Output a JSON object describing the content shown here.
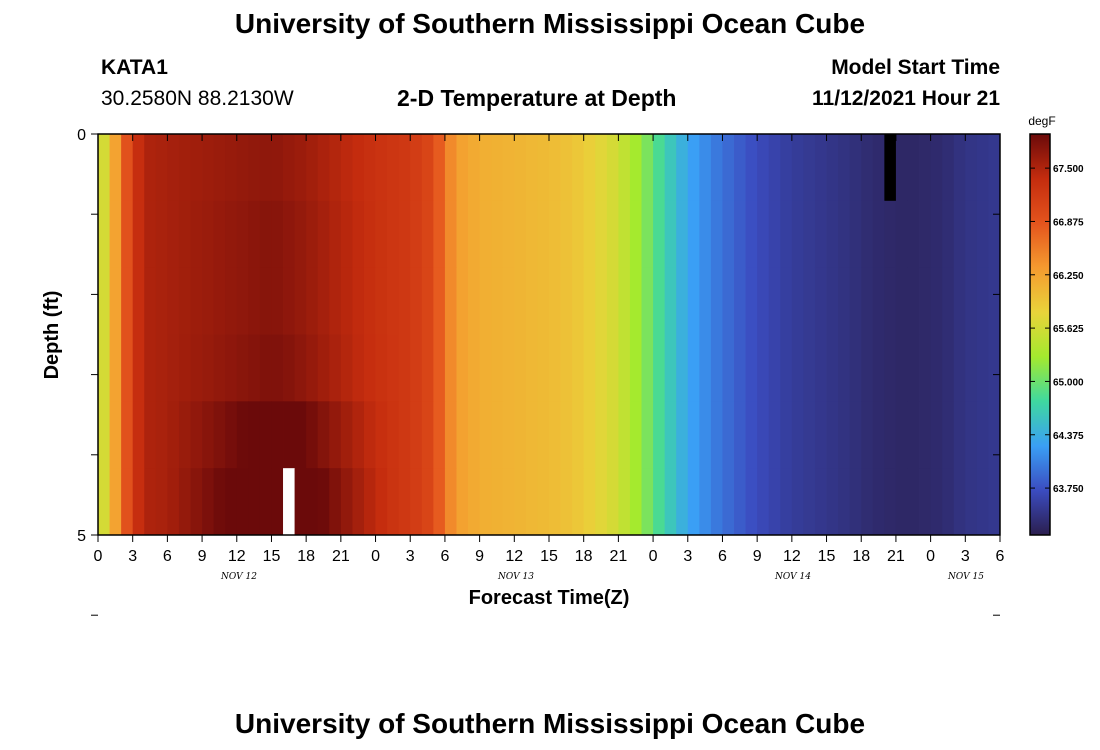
{
  "header": {
    "title": "University of Southern Mississippi Ocean Cube",
    "station_id": "KATA1",
    "station_coords": "30.2580N  88.2130W",
    "plot_title": "2-D Temperature at Depth",
    "model_start_label": "Model Start Time",
    "model_start_value": "11/12/2021 Hour 21"
  },
  "footer": {
    "title": "University of Southern Mississippi Ocean Cube"
  },
  "colors": {
    "colormap": [
      "#2b1e4e",
      "#3b4cc0",
      "#3a9ff5",
      "#3fd8a0",
      "#a4ea2e",
      "#e9d33a",
      "#f59a2f",
      "#e4541d",
      "#c42c0e",
      "#6b0a0a"
    ]
  },
  "chart_data": {
    "type": "heatmap",
    "title": "2-D Temperature at Depth",
    "xlabel": "Forecast Time(Z)",
    "ylabel": "Depth (ft)",
    "x_tick_labels": [
      "0",
      "3",
      "6",
      "9",
      "12",
      "15",
      "18",
      "21",
      "0",
      "3",
      "6",
      "9",
      "12",
      "15",
      "18",
      "21",
      "0",
      "3",
      "6",
      "9",
      "12",
      "15",
      "18",
      "21",
      "0",
      "3",
      "6"
    ],
    "x_date_labels": [
      "NOV 12",
      "NOV 13",
      "NOV 14",
      "NOV 15"
    ],
    "y_tick_labels": [
      "0",
      "5"
    ],
    "ylim": [
      0,
      5
    ],
    "xlim_hours": [
      0,
      78
    ],
    "depth_rows": [
      0,
      1,
      2,
      3,
      4,
      5
    ],
    "colorbar": {
      "unit": "degF",
      "ticks": [
        "67.500",
        "66.875",
        "66.250",
        "65.625",
        "65.000",
        "64.375",
        "63.750"
      ],
      "range": [
        63.2,
        67.9
      ]
    },
    "time_profile_degF": [
      [
        0,
        65.4
      ],
      [
        1,
        65.9
      ],
      [
        2,
        66.6
      ],
      [
        3,
        67.2
      ],
      [
        4,
        67.5
      ],
      [
        6,
        67.55
      ],
      [
        9,
        67.6
      ],
      [
        12,
        67.65
      ],
      [
        15,
        67.7
      ],
      [
        18,
        67.6
      ],
      [
        21,
        67.45
      ],
      [
        24,
        67.3
      ],
      [
        27,
        67.2
      ],
      [
        29,
        67.0
      ],
      [
        30,
        66.6
      ],
      [
        31,
        66.3
      ],
      [
        33,
        66.15
      ],
      [
        36,
        66.1
      ],
      [
        40,
        66.0
      ],
      [
        42,
        65.9
      ],
      [
        45,
        65.6
      ],
      [
        47,
        65.2
      ],
      [
        49,
        64.7
      ],
      [
        51,
        64.3
      ],
      [
        54,
        63.95
      ],
      [
        57,
        63.7
      ],
      [
        60,
        63.55
      ],
      [
        64,
        63.45
      ],
      [
        67,
        63.35
      ],
      [
        70,
        63.3
      ],
      [
        73,
        63.35
      ],
      [
        75,
        63.45
      ],
      [
        78,
        63.5
      ]
    ],
    "depth_warm_offset_degF": [
      0.0,
      0.05,
      0.05,
      0.1,
      0.35,
      0.55
    ],
    "missing_cells": [
      {
        "hour": 68,
        "depth_row": 0,
        "color": "#000000"
      },
      {
        "hour": 16,
        "depth_row": 5,
        "color": "#ffffff"
      }
    ]
  }
}
